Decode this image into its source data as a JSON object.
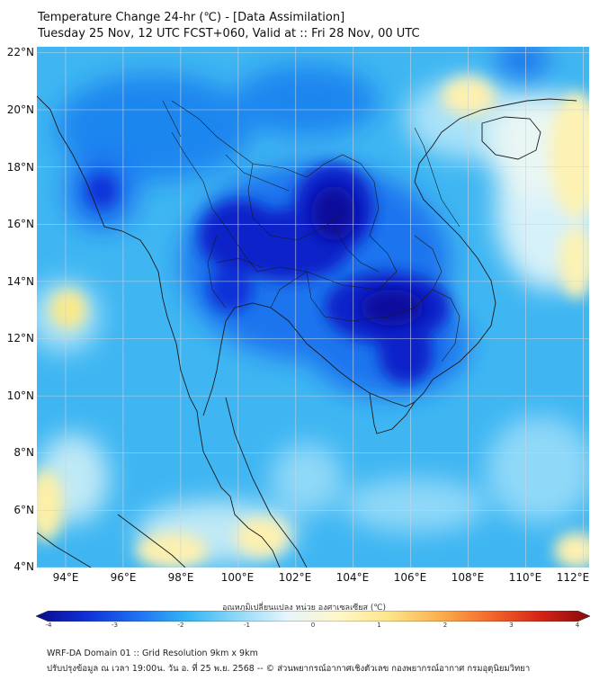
{
  "header": {
    "title_line1": "Temperature Change 24-hr (℃) - [Data Assimilation]",
    "title_line2": "Tuesday 25 Nov, 12 UTC FCST+060, Valid at :: Fri 28 Nov, 00 UTC"
  },
  "map": {
    "lat_labels": [
      "22°N",
      "20°N",
      "18°N",
      "16°N",
      "14°N",
      "12°N",
      "10°N",
      "8°N",
      "6°N",
      "4°N"
    ],
    "lon_labels": [
      "94°E",
      "96°E",
      "98°E",
      "100°E",
      "102°E",
      "104°E",
      "106°E",
      "108°E",
      "110°E",
      "112°E"
    ],
    "lat_range": [
      4,
      22.2
    ],
    "lon_range": [
      93,
      112.2
    ],
    "grid": true,
    "colors": {
      "land_outline": "#1a1a1a",
      "grid": "#c8d4de"
    }
  },
  "colorbar": {
    "label": "อุณหภูมิเปลี่ยนแปลง หน่วย องศาเซลเซียส (℃)",
    "ticks": [
      "-4",
      "-3",
      "-2",
      "-1",
      "0",
      "1",
      "2",
      "3",
      "4"
    ],
    "range": [
      -4,
      4
    ],
    "colors": [
      "#0b0b8a",
      "#1030d8",
      "#1f6ff2",
      "#33b5f5",
      "#8fd8f8",
      "#e6f6fb",
      "#fff7c8",
      "#fde58a",
      "#fbb14e",
      "#f46a2c",
      "#d62416",
      "#8a0a0a"
    ]
  },
  "footer": {
    "line1": "WRF-DA Domain 01 :: Grid Resolution 9km x 9km",
    "line2": "ปรับปรุงข้อมูล ณ เวลา 19:00น. วัน อ. ที่ 25 พ.ย. 2568 -- © ส่วนพยากรณ์อากาศเชิงตัวเลข กองพยากรณ์อากาศ กรมอุตุนิยมวิทยา"
  }
}
